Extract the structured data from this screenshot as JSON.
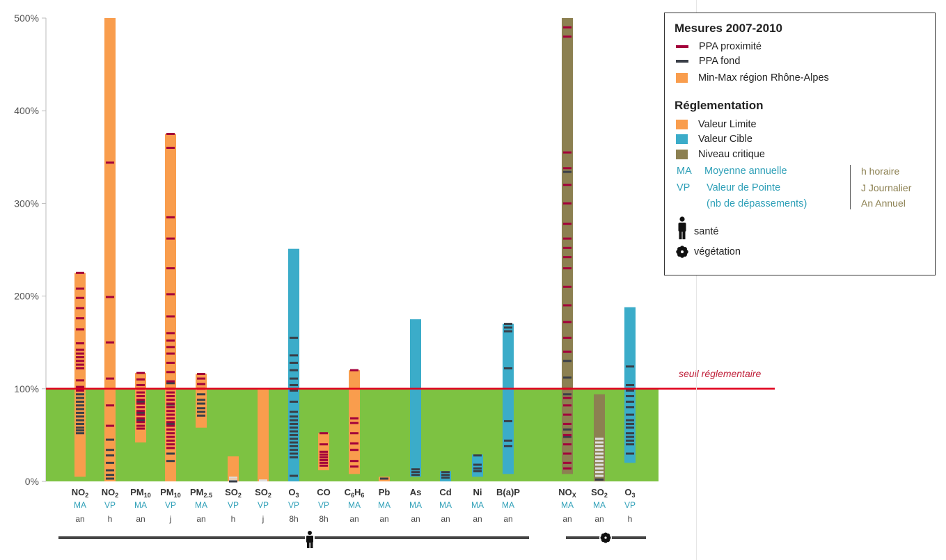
{
  "chart_data": {
    "type": "bar",
    "title": "",
    "xlabel": "",
    "ylabel": "",
    "ylim": [
      0,
      500
    ],
    "yticks": [
      "0%",
      "100%",
      "200%",
      "300%",
      "400%",
      "500%"
    ],
    "threshold": {
      "value": 100,
      "label": "seuil réglementaire",
      "color": "#e0001b"
    },
    "compliance_zone": {
      "from": 0,
      "to": 100,
      "color": "#7dc242"
    },
    "groups": [
      {
        "name": "santé",
        "icon": "person-icon",
        "count": 15
      },
      {
        "name": "végétation",
        "icon": "flower-icon",
        "count": 3
      }
    ],
    "bars": [
      {
        "pollutant": "NO",
        "sub": "2",
        "stat": "MA",
        "period": "an",
        "regulation": "Valeur Limite",
        "min": 5,
        "max": 225,
        "proximite": [
          225,
          208,
          198,
          187,
          176,
          164,
          149,
          142,
          138,
          134,
          130,
          126,
          122,
          109,
          102,
          98
        ],
        "fond": [
          94,
          90,
          86,
          82,
          78,
          74,
          70,
          66,
          62,
          58,
          55,
          52
        ]
      },
      {
        "pollutant": "NO",
        "sub": "2",
        "stat": "VP",
        "period": "h",
        "regulation": "Valeur Limite",
        "min": 0,
        "max": 500,
        "proximite": [
          344,
          199,
          150,
          111,
          82,
          60
        ],
        "fond": [
          45,
          34,
          28,
          20,
          12,
          7,
          3
        ]
      },
      {
        "pollutant": "PM",
        "sub": "10",
        "stat": "MA",
        "period": "an",
        "regulation": "Valeur Limite",
        "min": 42,
        "max": 117,
        "proximite": [
          117,
          110,
          104,
          100,
          96,
          92,
          88,
          84,
          80,
          76,
          72,
          68,
          64,
          60,
          57
        ],
        "fond": [
          86,
          74,
          66
        ]
      },
      {
        "pollutant": "PM",
        "sub": "10",
        "stat": "VP",
        "period": "j",
        "regulation": "Valeur Limite",
        "min": 0,
        "max": 375,
        "proximite": [
          375,
          360,
          285,
          262,
          230,
          202,
          178,
          160,
          152,
          145,
          138,
          128,
          118,
          108,
          100,
          96,
          92,
          88,
          84,
          80,
          76,
          72,
          68,
          64,
          60,
          56,
          52,
          48,
          44,
          40,
          36
        ],
        "fond": [
          106,
          83,
          62,
          30,
          22
        ]
      },
      {
        "pollutant": "PM",
        "sub": "2.5",
        "stat": "MA",
        "period": "an",
        "regulation": "Valeur Limite",
        "min": 58,
        "max": 116,
        "proximite": [
          116,
          111,
          105,
          100
        ],
        "fond": [
          94,
          88,
          84,
          79,
          75,
          71
        ]
      },
      {
        "pollutant": "SO",
        "sub": "2",
        "stat": "VP",
        "period": "h",
        "regulation": "Valeur Limite",
        "min": 0,
        "max": 27,
        "proximite": [],
        "fond": [
          0
        ],
        "extra": [
          {
            "value": 4,
            "color": "#dddddd"
          },
          {
            "value": 1,
            "color": "#dddddd"
          }
        ]
      },
      {
        "pollutant": "SO",
        "sub": "2",
        "stat": "VP",
        "period": "j",
        "regulation": "Valeur Limite",
        "min": 0,
        "max": 100,
        "proximite": [],
        "fond": [],
        "extra": [
          {
            "value": 1,
            "color": "#dddddd"
          }
        ]
      },
      {
        "pollutant": "O",
        "sub": "3",
        "stat": "VP",
        "period": "8h",
        "regulation": "Valeur Cible",
        "min": 0,
        "max": 251,
        "proximite": [],
        "fond": [
          155,
          136,
          128,
          120,
          111,
          104,
          98,
          86,
          75,
          70,
          66,
          62,
          58,
          54,
          50,
          46,
          42,
          38,
          34,
          30,
          26,
          6
        ]
      },
      {
        "pollutant": "CO",
        "sub": "",
        "stat": "VP",
        "period": "8h",
        "regulation": "Valeur Limite",
        "min": 12,
        "max": 52,
        "proximite": [
          52,
          40,
          32,
          29,
          26,
          23,
          20,
          17
        ],
        "fond": []
      },
      {
        "pollutant": "C",
        "sub": "6",
        "sub2": "6",
        "mid": "H",
        "stat": "MA",
        "period": "an",
        "regulation": "Valeur Limite",
        "min": 8,
        "max": 120,
        "proximite": [
          120,
          68,
          63,
          52,
          41,
          34,
          22,
          16
        ],
        "fond": []
      },
      {
        "pollutant": "Pb",
        "sub": "",
        "stat": "MA",
        "period": "an",
        "regulation": "Valeur Limite",
        "min": 0,
        "max": 5,
        "proximite": [],
        "fond": [
          3
        ]
      },
      {
        "pollutant": "As",
        "sub": "",
        "stat": "MA",
        "period": "an",
        "regulation": "Valeur Cible",
        "min": 5,
        "max": 175,
        "proximite": [],
        "fond": [
          13,
          10,
          7
        ]
      },
      {
        "pollutant": "Cd",
        "sub": "",
        "stat": "MA",
        "period": "an",
        "regulation": "Valeur Cible",
        "min": 0,
        "max": 11,
        "proximite": [],
        "fond": [
          10,
          7,
          4
        ]
      },
      {
        "pollutant": "Ni",
        "sub": "",
        "stat": "MA",
        "period": "an",
        "regulation": "Valeur Cible",
        "min": 5,
        "max": 29,
        "proximite": [],
        "fond": [
          28,
          18,
          14,
          11
        ]
      },
      {
        "pollutant": "B(a)P",
        "sub": "",
        "stat": "MA",
        "period": "an",
        "regulation": "Valeur Cible",
        "min": 8,
        "max": 170,
        "proximite": [],
        "fond": [
          170,
          166,
          162,
          122,
          65,
          44,
          38
        ]
      },
      {
        "pollutant": "NO",
        "sub": "X",
        "stat": "MA",
        "period": "an",
        "regulation": "Niveau critique",
        "min": 8,
        "max": 500,
        "proximite": [
          490,
          480,
          355,
          338,
          320,
          300,
          278,
          262,
          252,
          242,
          230,
          210,
          190,
          172,
          155,
          140,
          100,
          90,
          82,
          72,
          62,
          50,
          40,
          30,
          20,
          14
        ],
        "fond": [
          334,
          130,
          112,
          94,
          56,
          48
        ]
      },
      {
        "pollutant": "SO",
        "sub": "2",
        "stat": "MA",
        "period": "an",
        "regulation": "Niveau critique",
        "min": 0,
        "max": 94,
        "proximite": [],
        "fond": [
          2
        ],
        "extra": [
          {
            "value": 46,
            "color": "#e0e0e0"
          },
          {
            "value": 42,
            "color": "#e0e0e0"
          },
          {
            "value": 38,
            "color": "#e0e0e0"
          },
          {
            "value": 34,
            "color": "#e0e0e0"
          },
          {
            "value": 30,
            "color": "#e0e0e0"
          },
          {
            "value": 26,
            "color": "#e0e0e0"
          },
          {
            "value": 22,
            "color": "#e0e0e0"
          },
          {
            "value": 18,
            "color": "#e0e0e0"
          },
          {
            "value": 14,
            "color": "#e0e0e0"
          },
          {
            "value": 10,
            "color": "#e0e0e0"
          },
          {
            "value": 6,
            "color": "#e0e0e0"
          }
        ]
      },
      {
        "pollutant": "O",
        "sub": "3",
        "stat": "VP",
        "period": "h",
        "regulation": "Valeur Cible",
        "min": 20,
        "max": 188,
        "proximite": [],
        "fond": [
          124,
          104,
          98,
          92,
          86,
          80,
          72,
          66,
          62,
          58,
          52,
          48,
          44,
          40,
          30
        ]
      }
    ]
  },
  "legend": {
    "title": "Mesures 2007-2010",
    "measures": [
      {
        "label": "PPA proximité",
        "color": "#a3003a"
      },
      {
        "label": "PPA fond",
        "color": "#3a3f48"
      },
      {
        "label": "Min-Max région Rhône-Alpes",
        "color": "#f99d4d"
      }
    ],
    "regulation_title": "Réglementation",
    "regulations": [
      {
        "label": "Valeur Limite",
        "color": "#f99d4d"
      },
      {
        "label": "Valeur Cible",
        "color": "#3bacc9"
      },
      {
        "label": "Niveau critique",
        "color": "#8c8051"
      }
    ],
    "stats": [
      {
        "abbr": "MA",
        "label": "Moyenne annuelle"
      },
      {
        "abbr": "VP",
        "label": "Valeur de Pointe"
      }
    ],
    "vp_note": "(nb de dépassements)",
    "periods": [
      "h horaire",
      "J Journalier",
      "An Annuel"
    ],
    "groups": [
      {
        "label": "santé",
        "icon": "person-icon"
      },
      {
        "label": "végétation",
        "icon": "flower-icon"
      }
    ]
  }
}
